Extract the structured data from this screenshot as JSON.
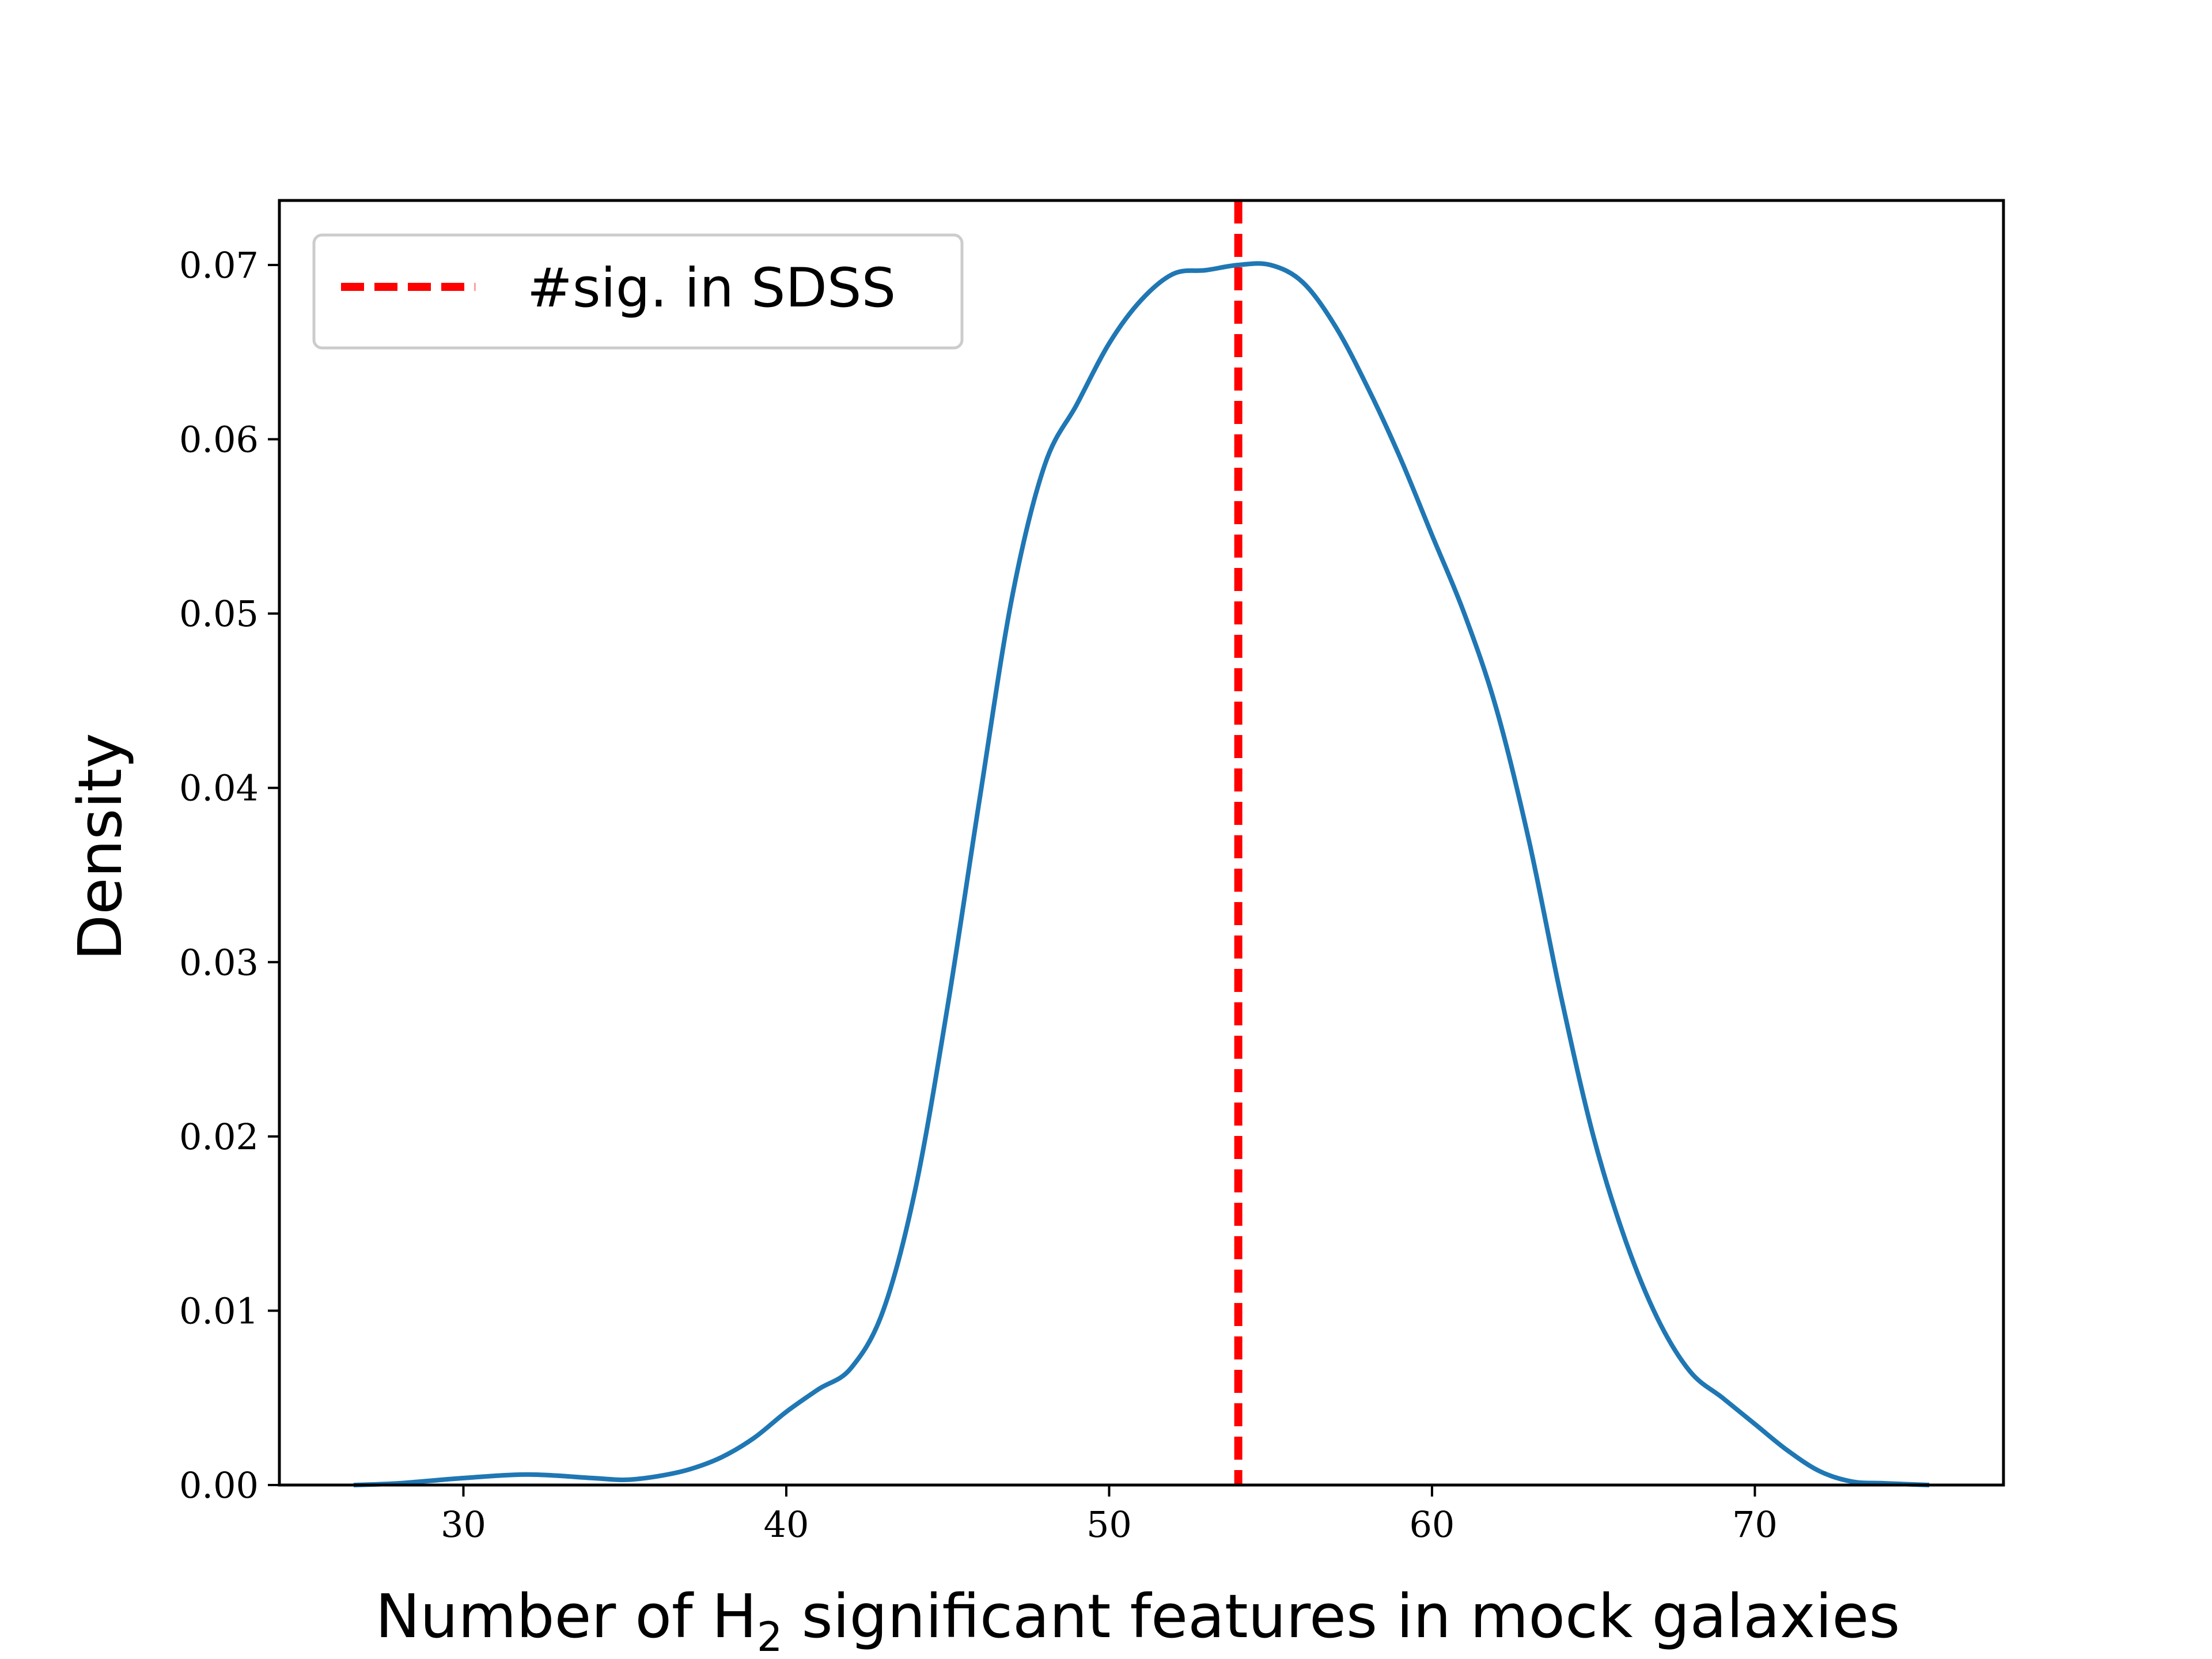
{
  "chart_data": {
    "type": "line",
    "title": "",
    "xlabel_prefix": "Number of H",
    "xlabel_subscript": "2",
    "xlabel_suffix": " significant features in mock galaxies",
    "ylabel": "Density",
    "xlim": [
      24.3,
      77.7
    ],
    "ylim": [
      0.0,
      0.0737
    ],
    "xticks": [
      30,
      40,
      50,
      60,
      70
    ],
    "xtick_labels": [
      "30",
      "40",
      "50",
      "60",
      "70"
    ],
    "yticks": [
      0.0,
      0.01,
      0.02,
      0.03,
      0.04,
      0.05,
      0.06,
      0.07
    ],
    "ytick_labels": [
      "0.00",
      "0.01",
      "0.02",
      "0.03",
      "0.04",
      "0.05",
      "0.06",
      "0.07"
    ],
    "grid": false,
    "legend_position": "upper-left",
    "series": [
      {
        "kind": "kde-curve",
        "color": "#1f77b4",
        "x": [
          26.6,
          28.0,
          30.0,
          32.0,
          34.0,
          35.0,
          36.0,
          37.0,
          38.0,
          39.0,
          40.0,
          41.0,
          42.0,
          43.0,
          44.0,
          45.0,
          46.0,
          47.0,
          48.0,
          49.0,
          50.0,
          51.0,
          52.0,
          53.0,
          54.0,
          55.0,
          56.0,
          57.0,
          58.0,
          59.0,
          60.0,
          61.0,
          62.0,
          63.0,
          64.0,
          65.0,
          66.0,
          67.0,
          68.0,
          69.0,
          70.0,
          71.0,
          72.0,
          73.0,
          74.0,
          75.4
        ],
        "y": [
          0.0,
          0.0001,
          0.0004,
          0.0006,
          0.0004,
          0.0003,
          0.0005,
          0.0009,
          0.0016,
          0.0027,
          0.0042,
          0.0055,
          0.0067,
          0.01,
          0.017,
          0.0275,
          0.0395,
          0.051,
          0.0585,
          0.062,
          0.0655,
          0.068,
          0.0695,
          0.0697,
          0.07,
          0.07,
          0.069,
          0.0665,
          0.063,
          0.059,
          0.0545,
          0.05,
          0.0445,
          0.037,
          0.028,
          0.02,
          0.014,
          0.0095,
          0.0065,
          0.005,
          0.0035,
          0.002,
          0.0008,
          0.0002,
          0.0001,
          0.0
        ]
      },
      {
        "kind": "vertical-line",
        "name": "#sig. in SDSS",
        "color": "#ff0000",
        "linestyle": "dashed",
        "x": 54
      }
    ]
  }
}
